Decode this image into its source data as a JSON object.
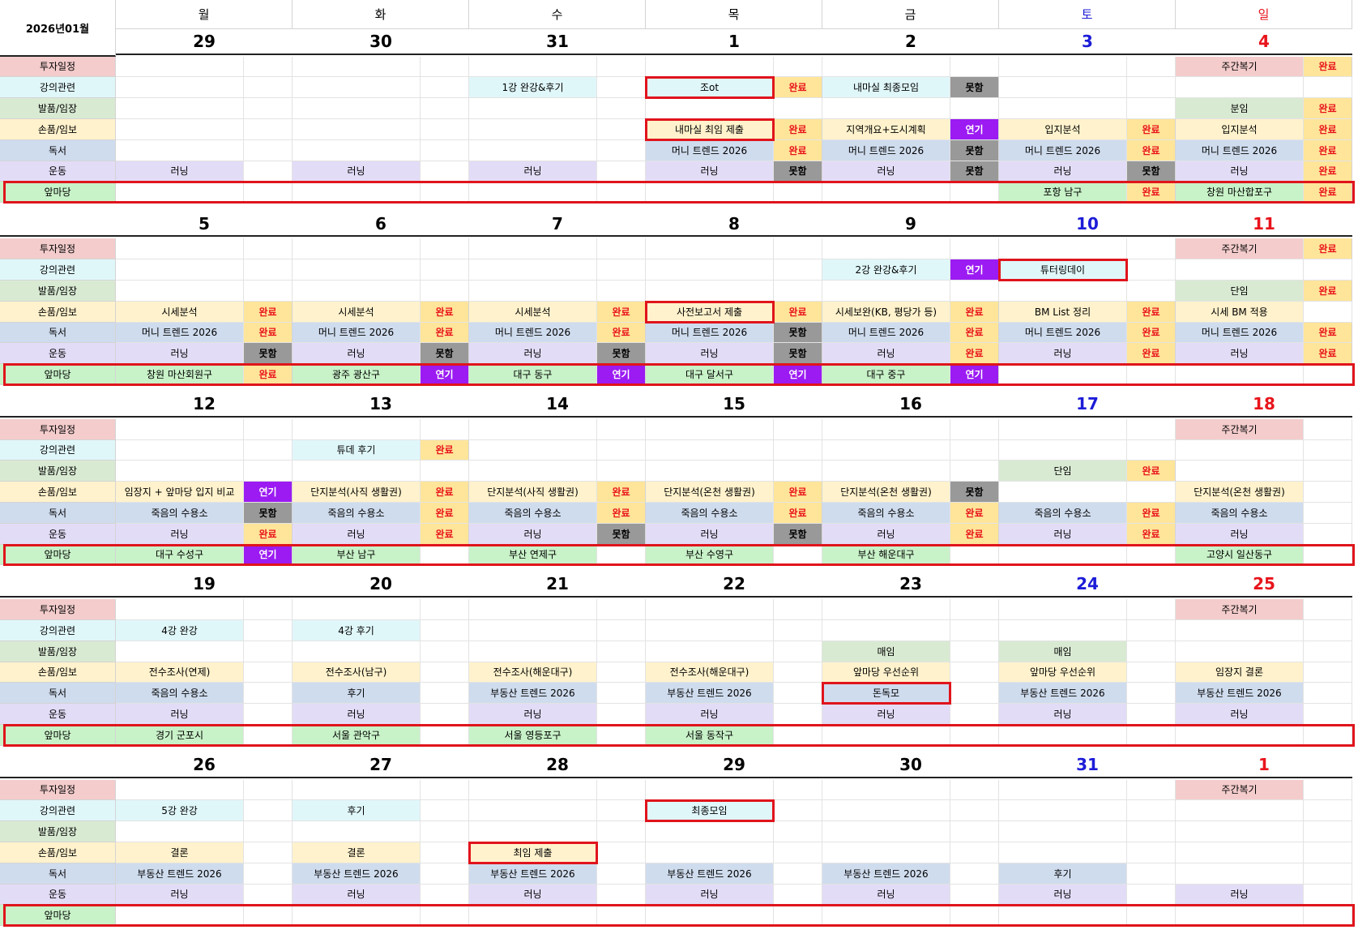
{
  "calendar": {
    "month_title": "2026년01월",
    "day_headers": [
      "월",
      "화",
      "수",
      "목",
      "금",
      "토",
      "일"
    ],
    "categories": [
      "투자일정",
      "강의관련",
      "발품/임장",
      "손품/임보",
      "독서",
      "운동",
      "앞마당"
    ],
    "weeks": [
      {
        "dates": [
          "29",
          "30",
          "31",
          "1",
          "2",
          "3",
          "4"
        ],
        "rows": [
          [
            [
              "",
              ""
            ],
            [
              "",
              ""
            ],
            [
              "",
              ""
            ],
            [
              "",
              ""
            ],
            [
              "",
              ""
            ],
            [
              "",
              ""
            ],
            [
              "주간복기",
              "완료"
            ]
          ],
          [
            [
              "",
              ""
            ],
            [
              "",
              ""
            ],
            [
              "1강 완강&후기",
              ""
            ],
            [
              "조ot",
              "완료"
            ],
            [
              "내마실 최종모임",
              "못함"
            ],
            [
              "",
              ""
            ],
            [
              "",
              ""
            ]
          ],
          [
            [
              "",
              ""
            ],
            [
              "",
              ""
            ],
            [
              "",
              ""
            ],
            [
              "",
              ""
            ],
            [
              "",
              ""
            ],
            [
              "",
              ""
            ],
            [
              "분임",
              "완료"
            ]
          ],
          [
            [
              "",
              ""
            ],
            [
              "",
              ""
            ],
            [
              "",
              ""
            ],
            [
              "내마실 최임 제출",
              "완료"
            ],
            [
              "지역개요+도시계획",
              "연기"
            ],
            [
              "입지분석",
              "완료"
            ],
            [
              "입지분석",
              "완료"
            ]
          ],
          [
            [
              "",
              ""
            ],
            [
              "",
              ""
            ],
            [
              "",
              ""
            ],
            [
              "머니 트렌드 2026",
              "완료"
            ],
            [
              "머니 트렌드 2026",
              "못함"
            ],
            [
              "머니 트렌드 2026",
              "완료"
            ],
            [
              "머니 트렌드 2026",
              "완료"
            ]
          ],
          [
            [
              "러닝",
              ""
            ],
            [
              "러닝",
              ""
            ],
            [
              "러닝",
              ""
            ],
            [
              "러닝",
              "못함"
            ],
            [
              "러닝",
              "못함"
            ],
            [
              "러닝",
              "못함"
            ],
            [
              "러닝",
              "완료"
            ]
          ],
          [
            [
              "",
              ""
            ],
            [
              "",
              ""
            ],
            [
              "",
              ""
            ],
            [
              "",
              ""
            ],
            [
              "",
              ""
            ],
            [
              "포항 남구",
              "완료"
            ],
            [
              "창원 마산합포구",
              "완료"
            ]
          ]
        ]
      },
      {
        "dates": [
          "5",
          "6",
          "7",
          "8",
          "9",
          "10",
          "11"
        ],
        "rows": [
          [
            [
              "",
              ""
            ],
            [
              "",
              ""
            ],
            [
              "",
              ""
            ],
            [
              "",
              ""
            ],
            [
              "",
              ""
            ],
            [
              "",
              ""
            ],
            [
              "주간복기",
              "완료"
            ]
          ],
          [
            [
              "",
              ""
            ],
            [
              "",
              ""
            ],
            [
              "",
              ""
            ],
            [
              "",
              ""
            ],
            [
              "2강 완강&후기",
              "연기"
            ],
            [
              "튜터링데이",
              ""
            ],
            [
              "",
              ""
            ]
          ],
          [
            [
              "",
              ""
            ],
            [
              "",
              ""
            ],
            [
              "",
              ""
            ],
            [
              "",
              ""
            ],
            [
              "",
              ""
            ],
            [
              "",
              ""
            ],
            [
              "단임",
              "완료"
            ]
          ],
          [
            [
              "시세분석",
              "완료"
            ],
            [
              "시세분석",
              "완료"
            ],
            [
              "시세분석",
              "완료"
            ],
            [
              "사전보고서 제출",
              "완료"
            ],
            [
              "시세보완(KB, 평당가 등)",
              "완료"
            ],
            [
              "BM List 정리",
              "완료"
            ],
            [
              "시세 BM 적용",
              ""
            ]
          ],
          [
            [
              "머니 트렌드 2026",
              "완료"
            ],
            [
              "머니 트렌드 2026",
              "완료"
            ],
            [
              "머니 트렌드 2026",
              "완료"
            ],
            [
              "머니 트렌드 2026",
              "못함"
            ],
            [
              "머니 트렌드 2026",
              "완료"
            ],
            [
              "머니 트렌드 2026",
              "완료"
            ],
            [
              "머니 트렌드 2026",
              "완료"
            ]
          ],
          [
            [
              "러닝",
              "못함"
            ],
            [
              "러닝",
              "못함"
            ],
            [
              "러닝",
              "못함"
            ],
            [
              "러닝",
              "못함"
            ],
            [
              "러닝",
              "완료"
            ],
            [
              "러닝",
              "완료"
            ],
            [
              "러닝",
              "완료"
            ]
          ],
          [
            [
              "창원 마산회원구",
              "완료"
            ],
            [
              "광주 광산구",
              "연기"
            ],
            [
              "대구 동구",
              "연기"
            ],
            [
              "대구 달서구",
              "연기"
            ],
            [
              "대구 중구",
              "연기"
            ],
            [
              "",
              ""
            ],
            [
              "",
              ""
            ]
          ]
        ]
      },
      {
        "dates": [
          "12",
          "13",
          "14",
          "15",
          "16",
          "17",
          "18"
        ],
        "rows": [
          [
            [
              "",
              ""
            ],
            [
              "",
              ""
            ],
            [
              "",
              ""
            ],
            [
              "",
              ""
            ],
            [
              "",
              ""
            ],
            [
              "",
              ""
            ],
            [
              "주간복기",
              ""
            ]
          ],
          [
            [
              "",
              ""
            ],
            [
              "튜데 후기",
              "완료"
            ],
            [
              "",
              ""
            ],
            [
              "",
              ""
            ],
            [
              "",
              ""
            ],
            [
              "",
              ""
            ],
            [
              "",
              ""
            ]
          ],
          [
            [
              "",
              ""
            ],
            [
              "",
              ""
            ],
            [
              "",
              ""
            ],
            [
              "",
              ""
            ],
            [
              "",
              ""
            ],
            [
              "단임",
              "완료"
            ],
            [
              "",
              ""
            ]
          ],
          [
            [
              "임장지 + 앞마당 입지 비교",
              "연기"
            ],
            [
              "단지분석(사직 생활권)",
              "완료"
            ],
            [
              "단지분석(사직 생활권)",
              "완료"
            ],
            [
              "단지분석(온천 생활권)",
              "완료"
            ],
            [
              "단지분석(온천 생활권)",
              "못함"
            ],
            [
              "",
              ""
            ],
            [
              "단지분석(온천 생활권)",
              ""
            ]
          ],
          [
            [
              "죽음의 수용소",
              "못함"
            ],
            [
              "죽음의 수용소",
              "완료"
            ],
            [
              "죽음의 수용소",
              "완료"
            ],
            [
              "죽음의 수용소",
              "완료"
            ],
            [
              "죽음의 수용소",
              "완료"
            ],
            [
              "죽음의 수용소",
              "완료"
            ],
            [
              "죽음의 수용소",
              ""
            ]
          ],
          [
            [
              "러닝",
              "완료"
            ],
            [
              "러닝",
              "완료"
            ],
            [
              "러닝",
              "못함"
            ],
            [
              "러닝",
              "못함"
            ],
            [
              "러닝",
              "완료"
            ],
            [
              "러닝",
              "완료"
            ],
            [
              "러닝",
              ""
            ]
          ],
          [
            [
              "대구 수성구",
              "연기"
            ],
            [
              "부산 남구",
              ""
            ],
            [
              "부산 연제구",
              ""
            ],
            [
              "부산 수영구",
              ""
            ],
            [
              "부산 해운대구",
              ""
            ],
            [
              "",
              ""
            ],
            [
              "고양시 일산동구",
              ""
            ]
          ]
        ]
      },
      {
        "dates": [
          "19",
          "20",
          "21",
          "22",
          "23",
          "24",
          "25"
        ],
        "rows": [
          [
            [
              "",
              ""
            ],
            [
              "",
              ""
            ],
            [
              "",
              ""
            ],
            [
              "",
              ""
            ],
            [
              "",
              ""
            ],
            [
              "",
              ""
            ],
            [
              "주간복기",
              ""
            ]
          ],
          [
            [
              "4강 완강",
              ""
            ],
            [
              "4강 후기",
              ""
            ],
            [
              "",
              ""
            ],
            [
              "",
              ""
            ],
            [
              "",
              ""
            ],
            [
              "",
              ""
            ],
            [
              "",
              ""
            ]
          ],
          [
            [
              "",
              ""
            ],
            [
              "",
              ""
            ],
            [
              "",
              ""
            ],
            [
              "",
              ""
            ],
            [
              "매임",
              ""
            ],
            [
              "매임",
              ""
            ],
            [
              "",
              ""
            ]
          ],
          [
            [
              "전수조사(연제)",
              ""
            ],
            [
              "전수조사(남구)",
              ""
            ],
            [
              "전수조사(해운대구)",
              ""
            ],
            [
              "전수조사(해운대구)",
              ""
            ],
            [
              "앞마당 우선순위",
              ""
            ],
            [
              "앞마당 우선순위",
              ""
            ],
            [
              "임장지 결론",
              ""
            ]
          ],
          [
            [
              "죽음의 수용소",
              ""
            ],
            [
              "후기",
              ""
            ],
            [
              "부동산 트렌드 2026",
              ""
            ],
            [
              "부동산 트렌드 2026",
              ""
            ],
            [
              "돈독모",
              ""
            ],
            [
              "부동산 트렌드 2026",
              ""
            ],
            [
              "부동산 트렌드 2026",
              ""
            ]
          ],
          [
            [
              "러닝",
              ""
            ],
            [
              "러닝",
              ""
            ],
            [
              "러닝",
              ""
            ],
            [
              "러닝",
              ""
            ],
            [
              "러닝",
              ""
            ],
            [
              "러닝",
              ""
            ],
            [
              "러닝",
              ""
            ]
          ],
          [
            [
              "경기 군포시",
              ""
            ],
            [
              "서울 관악구",
              ""
            ],
            [
              "서울 영등포구",
              ""
            ],
            [
              "서울 동작구",
              ""
            ],
            [
              "",
              ""
            ],
            [
              "",
              ""
            ],
            [
              "",
              ""
            ]
          ]
        ]
      },
      {
        "dates": [
          "26",
          "27",
          "28",
          "29",
          "30",
          "31",
          "1"
        ],
        "rows": [
          [
            [
              "",
              ""
            ],
            [
              "",
              ""
            ],
            [
              "",
              ""
            ],
            [
              "",
              ""
            ],
            [
              "",
              ""
            ],
            [
              "",
              ""
            ],
            [
              "주간복기",
              ""
            ]
          ],
          [
            [
              "5강 완강",
              ""
            ],
            [
              "후기",
              ""
            ],
            [
              "",
              ""
            ],
            [
              "최종모임",
              ""
            ],
            [
              "",
              ""
            ],
            [
              "",
              ""
            ],
            [
              "",
              ""
            ]
          ],
          [
            [
              "",
              ""
            ],
            [
              "",
              ""
            ],
            [
              "",
              ""
            ],
            [
              "",
              ""
            ],
            [
              "",
              ""
            ],
            [
              "",
              ""
            ],
            [
              "",
              ""
            ]
          ],
          [
            [
              "결론",
              ""
            ],
            [
              "결론",
              ""
            ],
            [
              "최임 제출",
              ""
            ],
            [
              "",
              ""
            ],
            [
              "",
              ""
            ],
            [
              "",
              ""
            ],
            [
              "",
              ""
            ]
          ],
          [
            [
              "부동산 트렌드 2026",
              ""
            ],
            [
              "부동산 트렌드 2026",
              ""
            ],
            [
              "부동산 트렌드 2026",
              ""
            ],
            [
              "부동산 트렌드 2026",
              ""
            ],
            [
              "부동산 트렌드 2026",
              ""
            ],
            [
              "후기",
              ""
            ],
            [
              "",
              ""
            ]
          ],
          [
            [
              "러닝",
              ""
            ],
            [
              "러닝",
              ""
            ],
            [
              "러닝",
              ""
            ],
            [
              "러닝",
              ""
            ],
            [
              "러닝",
              ""
            ],
            [
              "러닝",
              ""
            ],
            [
              "러닝",
              ""
            ]
          ],
          [
            [
              "",
              ""
            ],
            [
              "",
              ""
            ],
            [
              "",
              ""
            ],
            [
              "",
              ""
            ],
            [
              "",
              ""
            ],
            [
              "",
              ""
            ],
            [
              "",
              ""
            ]
          ]
        ]
      }
    ],
    "highlighted_tasks": [
      {
        "week": 0,
        "row": 1,
        "day": 3
      },
      {
        "week": 0,
        "row": 3,
        "day": 3
      },
      {
        "week": 1,
        "row": 1,
        "day": 5
      },
      {
        "week": 1,
        "row": 3,
        "day": 3
      },
      {
        "week": 3,
        "row": 4,
        "day": 4
      },
      {
        "week": 4,
        "row": 1,
        "day": 3
      },
      {
        "week": 4,
        "row": 3,
        "day": 2
      }
    ],
    "highlight_row_category": "앞마당"
  },
  "colors": {
    "category_fills": [
      "#f4cccc",
      "#e0f7fa",
      "#d9ead3",
      "#fff2cc",
      "#cfdcee",
      "#e3dcf7",
      "#c8f2c8"
    ],
    "task_fills": [
      "#f4cccc",
      "#e0f7fa",
      "#d9ead3",
      "#fff2cc",
      "#cfdcee",
      "#e3dcf7",
      "#c8f2c8"
    ],
    "status_완료_bg": "#ffe599",
    "status_완료_text": "#e8141c",
    "status_못함_bg": "#999999",
    "status_못함_text": "#000000",
    "status_연기_bg": "#9b1bf2",
    "status_연기_text": "#ffffff",
    "saturday": "#1c1cd8",
    "sunday": "#e8141c",
    "highlight_border": "#e0141c"
  }
}
